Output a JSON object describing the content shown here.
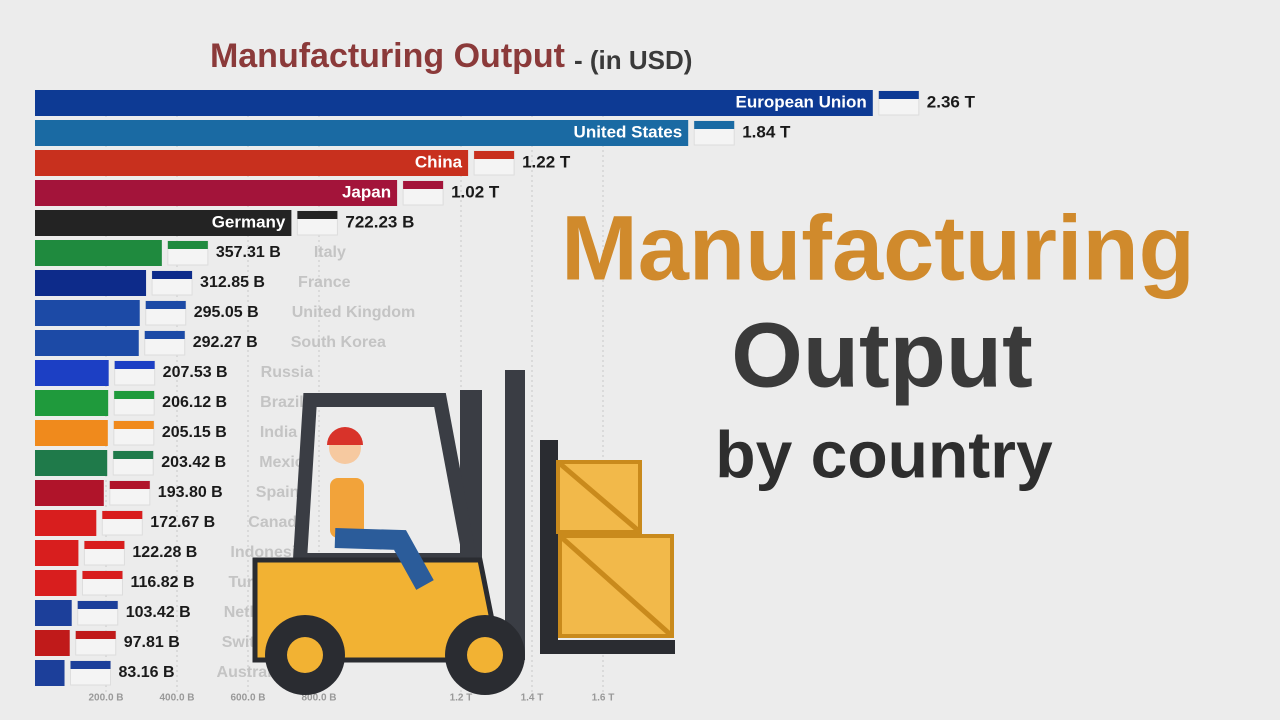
{
  "chart_data": {
    "type": "hbar",
    "title": "Manufacturing Output",
    "subtitle": "- (in USD)",
    "categories": [
      "European Union",
      "United States",
      "China",
      "Japan",
      "Germany",
      "Italy",
      "France",
      "United Kingdom",
      "South Korea",
      "Russia",
      "Brazil",
      "India",
      "Mexico",
      "Spain",
      "Canada",
      "Indonesia",
      "Turkey",
      "Netherlands",
      "Switzerland",
      "Australia"
    ],
    "values": [
      2360,
      1840,
      1220,
      1020,
      722.23,
      357.31,
      312.85,
      295.05,
      292.27,
      207.53,
      206.12,
      205.15,
      203.42,
      193.8,
      172.67,
      122.28,
      116.82,
      103.42,
      97.81,
      83.16
    ],
    "value_labels": [
      "2.36 T",
      "1.84 T",
      "1.22 T",
      "1.02 T",
      "722.23 B",
      "357.31 B",
      "312.85 B",
      "295.05 B",
      "292.27 B",
      "207.53 B",
      "206.12 B",
      "205.15 B",
      "203.42 B",
      "193.80 B",
      "172.67 B",
      "122.28 B",
      "116.82 B",
      "103.42 B",
      "97.81 B",
      "83.16 B"
    ],
    "colors": [
      "#0d3a94",
      "#1a6aa3",
      "#c8301e",
      "#a3143a",
      "#232323",
      "#1f8a3e",
      "#0d2b8a",
      "#1c4aa6",
      "#1c4aa6",
      "#1c3fc4",
      "#1f9a3c",
      "#f08a1c",
      "#1f7a4a",
      "#b0142a",
      "#d81e1e",
      "#d81e1e",
      "#d81e1e",
      "#1c3f9a",
      "#c01a1a",
      "#1c3f9a"
    ],
    "xlim": [
      0,
      3000
    ],
    "xticks": [
      {
        "value": 200,
        "label": "200.0 B"
      },
      {
        "value": 400,
        "label": "400.0 B"
      },
      {
        "value": 600,
        "label": "600.0 B"
      },
      {
        "value": 800,
        "label": "800.0 B"
      },
      {
        "value": 1200,
        "label": "1.2 T"
      },
      {
        "value": 1400,
        "label": "1.4 T"
      },
      {
        "value": 1600,
        "label": "1.6 T"
      }
    ],
    "grid": true
  },
  "overlay": {
    "line1": "Manufacturing",
    "line2": "Output",
    "line3": "by country"
  }
}
